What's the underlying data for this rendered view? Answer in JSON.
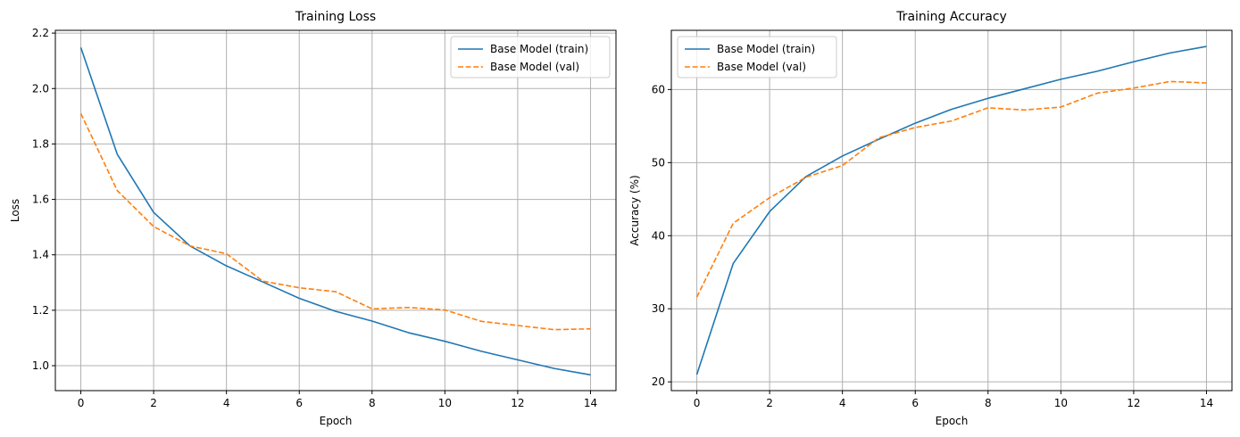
{
  "chart_data": [
    {
      "type": "line",
      "title": "Training Loss",
      "xlabel": "Epoch",
      "ylabel": "Loss",
      "xlim": [
        -0.7,
        14.7
      ],
      "ylim": [
        0.91,
        2.21
      ],
      "xticks": [
        0,
        2,
        4,
        6,
        8,
        10,
        12,
        14
      ],
      "xtick_labels": [
        "0",
        "2",
        "4",
        "6",
        "8",
        "10",
        "12",
        "14"
      ],
      "yticks": [
        1.0,
        1.2,
        1.4,
        1.6,
        1.8,
        2.0,
        2.2
      ],
      "ytick_labels": [
        "1.0",
        "1.2",
        "1.4",
        "1.6",
        "1.8",
        "2.0",
        "2.2"
      ],
      "grid": true,
      "legend": "top-right",
      "x": [
        0,
        1,
        2,
        3,
        4,
        5,
        6,
        7,
        8,
        9,
        10,
        11,
        12,
        13,
        14
      ],
      "series": [
        {
          "name": "Base Model (train)",
          "color": "#1f77b4",
          "dash": "solid",
          "values": [
            2.148,
            1.763,
            1.553,
            1.432,
            1.36,
            1.302,
            1.243,
            1.196,
            1.161,
            1.119,
            1.088,
            1.052,
            1.021,
            0.99,
            0.967
          ]
        },
        {
          "name": "Base Model (val)",
          "color": "#ff7f0e",
          "dash": "dashed",
          "values": [
            1.91,
            1.632,
            1.502,
            1.432,
            1.404,
            1.305,
            1.281,
            1.267,
            1.205,
            1.21,
            1.201,
            1.16,
            1.145,
            1.13,
            1.133
          ]
        }
      ]
    },
    {
      "type": "line",
      "title": "Training Accuracy",
      "xlabel": "Epoch",
      "ylabel": "Accuracy (%)",
      "xlim": [
        -0.7,
        14.7
      ],
      "ylim": [
        18.8,
        68.1
      ],
      "xticks": [
        0,
        2,
        4,
        6,
        8,
        10,
        12,
        14
      ],
      "xtick_labels": [
        "0",
        "2",
        "4",
        "6",
        "8",
        "10",
        "12",
        "14"
      ],
      "yticks": [
        20,
        30,
        40,
        50,
        60
      ],
      "ytick_labels": [
        "20",
        "30",
        "40",
        "50",
        "60"
      ],
      "grid": true,
      "legend": "top-left",
      "x": [
        0,
        1,
        2,
        3,
        4,
        5,
        6,
        7,
        8,
        9,
        10,
        11,
        12,
        13,
        14
      ],
      "series": [
        {
          "name": "Base Model (train)",
          "color": "#1f77b4",
          "dash": "solid",
          "values": [
            21.0,
            36.2,
            43.3,
            48.1,
            50.9,
            53.2,
            55.4,
            57.3,
            58.8,
            60.1,
            61.4,
            62.5,
            63.8,
            65.0,
            65.9
          ]
        },
        {
          "name": "Base Model (val)",
          "color": "#ff7f0e",
          "dash": "dashed",
          "values": [
            31.6,
            41.7,
            45.2,
            48.0,
            49.6,
            53.4,
            54.8,
            55.7,
            57.5,
            57.2,
            57.6,
            59.5,
            60.2,
            61.1,
            60.9
          ]
        }
      ]
    }
  ]
}
